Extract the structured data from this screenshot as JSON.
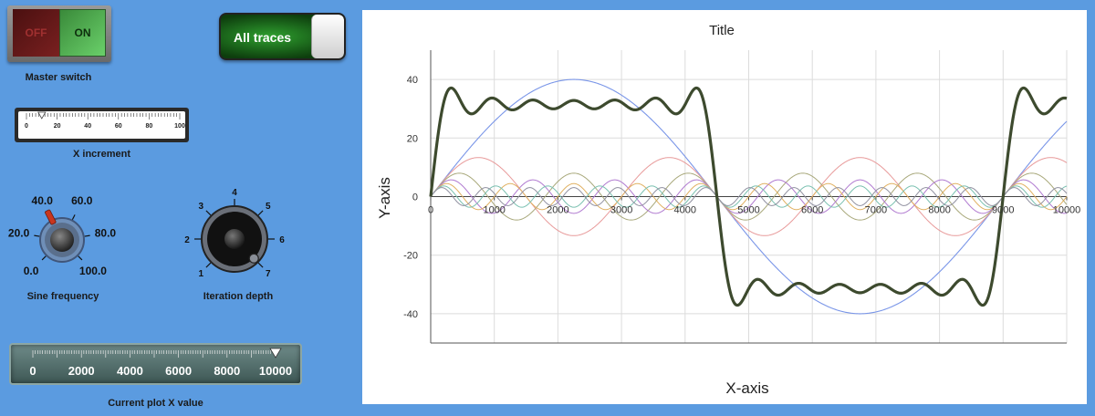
{
  "controls": {
    "master_switch": {
      "off_label": "OFF",
      "on_label": "ON",
      "label": "Master switch",
      "state": "on"
    },
    "traces_toggle": {
      "label": "All traces",
      "state": "on"
    },
    "x_increment": {
      "label": "X increment",
      "ticks": [
        "0",
        "20",
        "40",
        "60",
        "80",
        "100"
      ],
      "value": 10
    },
    "sine_frequency": {
      "label": "Sine frequency",
      "ticks": [
        "0.0",
        "20.0",
        "40.0",
        "60.0",
        "80.0",
        "100.0"
      ],
      "value": 40
    },
    "iteration_depth": {
      "label": "Iteration depth",
      "ticks": [
        "1",
        "2",
        "3",
        "4",
        "5",
        "6",
        "7"
      ],
      "value": 7
    },
    "plot_x_slider": {
      "label": "Current plot X value",
      "ticks": [
        "0",
        "2000",
        "4000",
        "6000",
        "8000",
        "10000"
      ],
      "value": 10000
    }
  },
  "colors": {
    "background": "#5b9be0",
    "square_wave": "#3d4a2e",
    "fundamental": "#7a96e8",
    "harmonics": [
      "#e89a9a",
      "#a8a87a",
      "#b07ad0",
      "#e0b060",
      "#7ac0b0",
      "#9090a0"
    ]
  },
  "chart_data": {
    "type": "line",
    "title": "Title",
    "xlabel": "X-axis",
    "ylabel": "Y-axis",
    "xlim": [
      0,
      10000
    ],
    "ylim": [
      -50,
      50
    ],
    "xticks": [
      "0",
      "1000",
      "2000",
      "3000",
      "4000",
      "5000",
      "6000",
      "7000",
      "8000",
      "9000",
      "10000"
    ],
    "yticks": [
      "40",
      "20",
      "0",
      "-20",
      "-40"
    ],
    "grid": true,
    "period": 9000,
    "series": [
      {
        "role": "sum",
        "harmonic": 0
      },
      {
        "role": "fundamental",
        "harmonic": 1
      },
      {
        "role": "harmonic",
        "harmonic": 3
      },
      {
        "role": "harmonic",
        "harmonic": 5
      },
      {
        "role": "harmonic",
        "harmonic": 7
      },
      {
        "role": "harmonic",
        "harmonic": 9
      },
      {
        "role": "harmonic",
        "harmonic": 11
      },
      {
        "role": "harmonic",
        "harmonic": 13
      }
    ],
    "fundamental_amplitude": 40
  }
}
